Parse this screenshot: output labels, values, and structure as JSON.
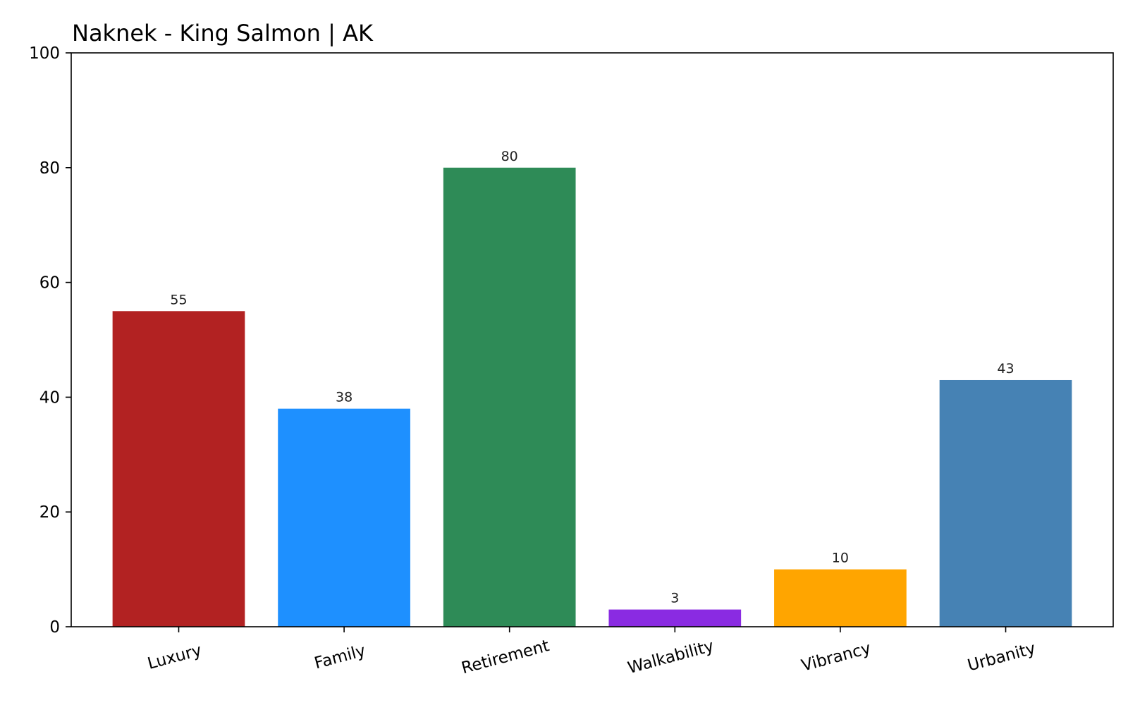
{
  "chart_data": {
    "type": "bar",
    "title": "Naknek - King Salmon | AK",
    "xlabel": "",
    "ylabel": "",
    "categories": [
      "Luxury",
      "Family",
      "Retirement",
      "Walkability",
      "Vibrancy",
      "Urbanity"
    ],
    "values": [
      55,
      38,
      80,
      3,
      10,
      43
    ],
    "data_labels": [
      "55",
      "38",
      "80",
      "3",
      "10",
      "43"
    ],
    "colors": [
      "#b22222",
      "#1e90ff",
      "#2e8b57",
      "#8a2be2",
      "#ffa500",
      "#4682b4"
    ],
    "ylim": [
      0,
      100
    ],
    "yticks": [
      0,
      20,
      40,
      60,
      80,
      100
    ],
    "grid": false,
    "legend": "none"
  }
}
